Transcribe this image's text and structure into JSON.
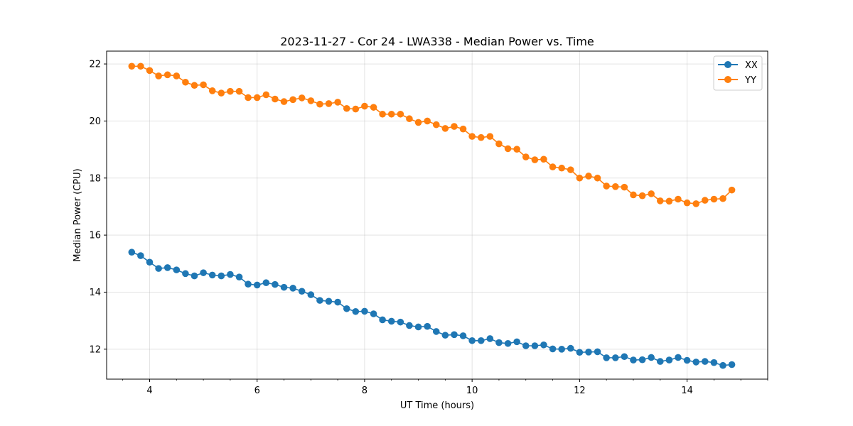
{
  "chart_data": {
    "type": "line",
    "title": "2023-11-27 - Cor 24 - LWA338 - Median Power vs. Time",
    "xlabel": "UT Time (hours)",
    "ylabel": "Median Power (CPU)",
    "xlim": [
      3.2,
      15.5
    ],
    "ylim": [
      10.95,
      22.45
    ],
    "xticks": [
      4,
      6,
      8,
      10,
      12,
      14
    ],
    "yticks": [
      12,
      14,
      16,
      18,
      20,
      22
    ],
    "xtick_labels": [
      "4",
      "6",
      "8",
      "10",
      "12",
      "14"
    ],
    "ytick_labels": [
      "12",
      "14",
      "16",
      "18",
      "20",
      "22"
    ],
    "grid": true,
    "legend_position": "top-right",
    "x": [
      3.667,
      3.833,
      4.0,
      4.167,
      4.333,
      4.5,
      4.667,
      4.833,
      5.0,
      5.167,
      5.333,
      5.5,
      5.667,
      5.833,
      6.0,
      6.167,
      6.333,
      6.5,
      6.667,
      6.833,
      7.0,
      7.167,
      7.333,
      7.5,
      7.667,
      7.833,
      8.0,
      8.167,
      8.333,
      8.5,
      8.667,
      8.833,
      9.0,
      9.167,
      9.333,
      9.5,
      9.667,
      9.833,
      10.0,
      10.167,
      10.333,
      10.5,
      10.667,
      10.833,
      11.0,
      11.167,
      11.333,
      11.5,
      11.667,
      11.833,
      12.0,
      12.167,
      12.333,
      12.5,
      12.667,
      12.833,
      13.0,
      13.167,
      13.333,
      13.5,
      13.667,
      13.833,
      14.0,
      14.167,
      14.333,
      14.5,
      14.667,
      14.833
    ],
    "series": [
      {
        "name": "XX",
        "color": "#1f77b4",
        "marker": "circle",
        "values": [
          15.4,
          15.28,
          15.05,
          14.83,
          14.86,
          14.78,
          14.65,
          14.57,
          14.68,
          14.6,
          14.57,
          14.62,
          14.53,
          14.28,
          14.25,
          14.33,
          14.27,
          14.17,
          14.14,
          14.03,
          13.91,
          13.71,
          13.68,
          13.65,
          13.42,
          13.32,
          13.33,
          13.24,
          13.03,
          12.98,
          12.95,
          12.83,
          12.78,
          12.8,
          12.62,
          12.49,
          12.51,
          12.47,
          12.3,
          12.3,
          12.37,
          12.23,
          12.2,
          12.26,
          12.12,
          12.12,
          12.15,
          12.01,
          12.0,
          12.03,
          11.89,
          11.9,
          11.91,
          11.7,
          11.7,
          11.74,
          11.62,
          11.63,
          11.71,
          11.57,
          11.62,
          11.71,
          11.61,
          11.55,
          11.57,
          11.53,
          11.43,
          11.46
        ]
      },
      {
        "name": "YY",
        "color": "#ff7f0e",
        "marker": "circle",
        "values": [
          21.92,
          21.92,
          21.77,
          21.58,
          21.62,
          21.58,
          21.36,
          21.25,
          21.27,
          21.06,
          20.98,
          21.04,
          21.04,
          20.82,
          20.82,
          20.92,
          20.77,
          20.68,
          20.75,
          20.81,
          20.71,
          20.59,
          20.61,
          20.66,
          20.44,
          20.42,
          20.52,
          20.48,
          20.24,
          20.24,
          20.24,
          20.08,
          19.95,
          20.0,
          19.87,
          19.74,
          19.81,
          19.72,
          19.46,
          19.42,
          19.46,
          19.2,
          19.03,
          19.01,
          18.74,
          18.64,
          18.66,
          18.39,
          18.35,
          18.29,
          18.0,
          18.07,
          18.0,
          17.72,
          17.7,
          17.68,
          17.41,
          17.38,
          17.45,
          17.2,
          17.19,
          17.26,
          17.13,
          17.1,
          17.22,
          17.26,
          17.28,
          17.58
        ]
      }
    ]
  }
}
